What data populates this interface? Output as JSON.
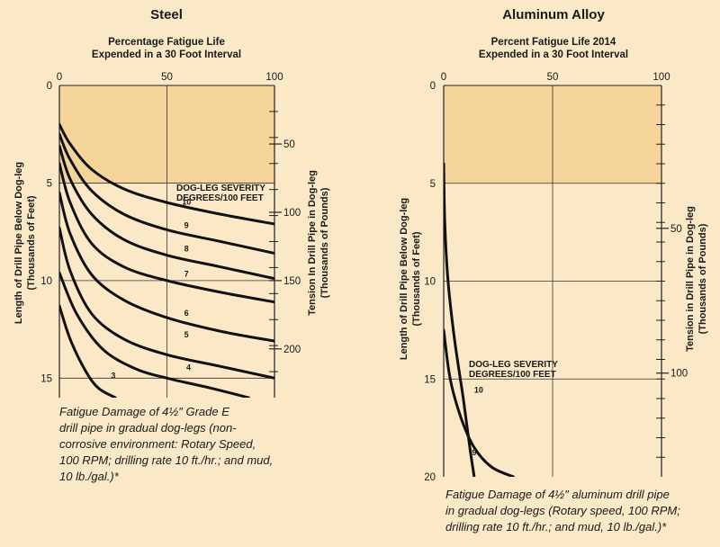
{
  "colors": {
    "page_background": "#fbe8c6",
    "plot_background": "#f7d9a3",
    "plot_shaded": "#f5d49a",
    "curve": "#111111",
    "grid": "#222222"
  },
  "chart_data": [
    {
      "type": "line",
      "title": "Steel",
      "top_axis_title": [
        "Percentage Fatigue Life",
        "Expended in a 30 Foot Interval"
      ],
      "top_ticks": [
        "0",
        "50",
        "100"
      ],
      "xlim": [
        0,
        100
      ],
      "ylabel": [
        "Length of Drill Pipe Below Dog-leg",
        "(Thousands of Feet)"
      ],
      "left_ticks": [
        "0",
        "5",
        "10",
        "15"
      ],
      "ylim": [
        0,
        16
      ],
      "right_label": [
        "Tension In Drill Pipe in Dog-leg",
        "(Thousands of Pounds)"
      ],
      "right_ticks": [
        "50",
        "100",
        "150",
        "200"
      ],
      "right_tick_positions": [
        3.0,
        6.5,
        10.0,
        13.5
      ],
      "severity_label": [
        "DOG-LEG SEVERITY",
        "DEGREES/100 FEET"
      ],
      "series": [
        {
          "name": "10",
          "x": [
            0,
            5,
            15,
            30,
            50,
            75,
            100
          ],
          "y": [
            2.0,
            3.0,
            4.3,
            5.3,
            6.0,
            6.6,
            7.1
          ],
          "label_at": [
            57,
            6.1
          ]
        },
        {
          "name": "9",
          "x": [
            0,
            5,
            15,
            30,
            50,
            75,
            100
          ],
          "y": [
            2.5,
            3.8,
            5.4,
            6.6,
            7.4,
            8.0,
            8.6
          ],
          "label_at": [
            58,
            7.3
          ]
        },
        {
          "name": "8",
          "x": [
            0,
            5,
            15,
            30,
            50,
            75,
            100
          ],
          "y": [
            3.1,
            4.8,
            6.6,
            7.9,
            8.7,
            9.3,
            9.9
          ],
          "label_at": [
            58,
            8.5
          ]
        },
        {
          "name": "7",
          "x": [
            0,
            5,
            15,
            30,
            50,
            75,
            100
          ],
          "y": [
            4.0,
            6.0,
            8.1,
            9.3,
            10.0,
            10.6,
            11.1
          ],
          "label_at": [
            58,
            9.8
          ]
        },
        {
          "name": "6",
          "x": [
            0,
            5,
            15,
            30,
            50,
            75,
            100
          ],
          "y": [
            5.5,
            7.6,
            9.7,
            11.0,
            11.9,
            12.6,
            13.1
          ],
          "label_at": [
            58,
            11.8
          ]
        },
        {
          "name": "5",
          "x": [
            0,
            5,
            15,
            30,
            50,
            75,
            100
          ],
          "y": [
            7.3,
            9.5,
            11.7,
            13.0,
            13.8,
            14.4,
            15.0
          ],
          "label_at": [
            58,
            12.9
          ]
        },
        {
          "name": "4",
          "x": [
            0,
            8,
            20,
            35,
            50,
            70,
            88
          ],
          "y": [
            9.6,
            11.7,
            13.5,
            14.5,
            15.0,
            15.5,
            16.0
          ],
          "label_at": [
            59,
            14.6
          ]
        },
        {
          "name": "3",
          "x": [
            0,
            5,
            12,
            18,
            26
          ],
          "y": [
            11.3,
            13.0,
            14.6,
            15.5,
            16.0
          ],
          "label_at": [
            24,
            15.0
          ]
        }
      ],
      "caption": [
        "Fatigue Damage of 4½″ Grade E",
        "drill pipe in gradual dog-legs (non-",
        "corrosive environment: Rotary Speed,",
        "100 RPM; drilling rate 10 ft./hr.; and mud,",
        "10 lb./gal.)*"
      ]
    },
    {
      "type": "line",
      "title": "Aluminum Alloy",
      "top_axis_title": [
        "Percent Fatigue Life 2014",
        "Expended in a 30 Foot Interval"
      ],
      "top_ticks": [
        "0",
        "50",
        "100"
      ],
      "xlim": [
        0,
        100
      ],
      "ylabel": [
        "Length of Drill Pipe Below Dog-leg",
        "(Thousands of Feet)"
      ],
      "left_ticks": [
        "0",
        "5",
        "10",
        "15",
        "20"
      ],
      "ylim": [
        0,
        20
      ],
      "right_label": [
        "Tension in Drill Pipe in Dog-leg",
        "(Thousands of Pounds)"
      ],
      "right_ticks": [
        "50",
        "100"
      ],
      "right_tick_positions": [
        7.3,
        14.7
      ],
      "severity_label": [
        "DOG-LEG SEVERITY",
        "DEGREES/100 FEET"
      ],
      "series": [
        {
          "name": "10",
          "x": [
            0,
            0.5,
            2,
            5,
            9,
            12,
            14
          ],
          "y": [
            4.0,
            7.0,
            10.0,
            13.0,
            16.0,
            18.5,
            20.0
          ],
          "label_at": [
            14,
            15.7
          ]
        },
        {
          "name": "9",
          "x": [
            0,
            3,
            8,
            14,
            22,
            32
          ],
          "y": [
            12.5,
            15.0,
            17.0,
            18.5,
            19.5,
            20.0
          ],
          "label_at": [
            13,
            18.9
          ]
        }
      ],
      "caption": [
        "Fatigue Damage of 4½″ aluminum drill pipe",
        "in gradual dog-legs (Rotary speed, 100 RPM;",
        "drilling rate 10 ft./hr.; and mud, 10 lb./gal.)*"
      ]
    }
  ]
}
